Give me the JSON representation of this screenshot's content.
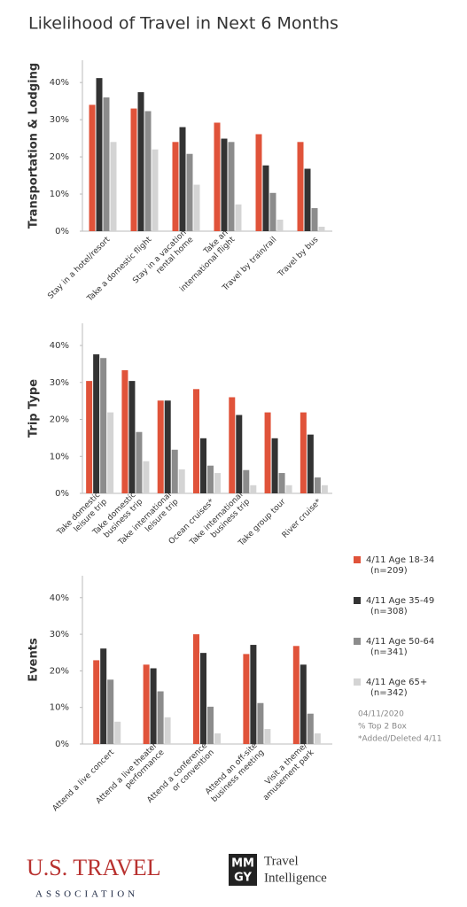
{
  "title": "Likelihood of Travel in Next 6 Months",
  "chart_data": [
    {
      "type": "bar",
      "ylabel": "Transportation & Lodging",
      "ylim": [
        0,
        46
      ],
      "yticks": [
        {
          "value": 0,
          "label": "0%"
        },
        {
          "value": 10,
          "label": "10%"
        },
        {
          "value": 20,
          "label": "20%"
        },
        {
          "value": 30,
          "label": "30%"
        },
        {
          "value": 40,
          "label": "40%"
        }
      ],
      "categories": [
        [
          "Stay in a hotel/resort"
        ],
        [
          "Take a domestic flight"
        ],
        [
          "Stay in a vacation",
          "rental home"
        ],
        [
          "Take an",
          "international flight"
        ],
        [
          "Travel by train/rail"
        ],
        [
          "Travel by bus"
        ]
      ],
      "series": [
        {
          "name": "4/11 Age 18-34",
          "color": "#e0533a",
          "values": [
            34,
            33,
            24,
            29.2,
            26.1,
            24
          ]
        },
        {
          "name": "4/11 Age 35-49",
          "color": "#333333",
          "values": [
            41.2,
            37.4,
            28,
            24.9,
            17.7,
            16.8
          ]
        },
        {
          "name": "4/11 Age 50-64",
          "color": "#8c8c8c",
          "values": [
            36,
            32.3,
            20.8,
            24,
            10.3,
            6.2
          ]
        },
        {
          "name": "4/11 Age 65+",
          "color": "#d4d4d4",
          "values": [
            24,
            22,
            12.5,
            7.2,
            3.1,
            1.2
          ]
        }
      ]
    },
    {
      "type": "bar",
      "ylabel": "Trip Type",
      "ylim": [
        0,
        46
      ],
      "yticks": [
        {
          "value": 0,
          "label": "0%"
        },
        {
          "value": 10,
          "label": "10%"
        },
        {
          "value": 20,
          "label": "20%"
        },
        {
          "value": 30,
          "label": "30%"
        },
        {
          "value": 40,
          "label": "40%"
        }
      ],
      "categories": [
        [
          "Take domestic",
          "leisure trip"
        ],
        [
          "Take domestic",
          "business trip"
        ],
        [
          "Take international",
          "leisure trip"
        ],
        [
          "Ocean cruises*"
        ],
        [
          "Take international",
          "business trip"
        ],
        [
          "Take group tour"
        ],
        [
          "River cruise*"
        ]
      ],
      "series": [
        {
          "name": "4/11 Age 18-34",
          "color": "#e0533a",
          "values": [
            30.4,
            33.3,
            25.1,
            28.2,
            26,
            21.9,
            21.9
          ]
        },
        {
          "name": "4/11 Age 35-49",
          "color": "#333333",
          "values": [
            37.6,
            30.4,
            25.1,
            14.9,
            21.2,
            14.9,
            15.9
          ]
        },
        {
          "name": "4/11 Age 50-64",
          "color": "#8c8c8c",
          "values": [
            36.6,
            16.6,
            11.8,
            7.5,
            6.3,
            5.5,
            4.3
          ]
        },
        {
          "name": "4/11 Age 65+",
          "color": "#d4d4d4",
          "values": [
            21.9,
            8.7,
            6.5,
            5.5,
            2.2,
            2.2,
            2.2
          ]
        }
      ]
    },
    {
      "type": "bar",
      "ylabel": "Events",
      "ylim": [
        0,
        46
      ],
      "yticks": [
        {
          "value": 0,
          "label": "0%"
        },
        {
          "value": 10,
          "label": "10%"
        },
        {
          "value": 20,
          "label": "20%"
        },
        {
          "value": 30,
          "label": "30%"
        },
        {
          "value": 40,
          "label": "40%"
        }
      ],
      "categories": [
        [
          "Attend a live concert"
        ],
        [
          "Attend a live theater",
          "performance"
        ],
        [
          "Attend a conference",
          "or convention"
        ],
        [
          "Attend an off-site",
          "business meeting"
        ],
        [
          "Visit a theme/",
          "amusement park"
        ]
      ],
      "series": [
        {
          "name": "4/11 Age 18-34",
          "color": "#e0533a",
          "values": [
            22.9,
            21.7,
            30,
            24.6,
            26.8
          ]
        },
        {
          "name": "4/11 Age 35-49",
          "color": "#333333",
          "values": [
            26.1,
            20.7,
            24.9,
            27.1,
            21.7
          ]
        },
        {
          "name": "4/11 Age 50-64",
          "color": "#8c8c8c",
          "values": [
            17.6,
            14.4,
            10.2,
            11.2,
            8.3
          ]
        },
        {
          "name": "4/11 Age 65+",
          "color": "#d4d4d4",
          "values": [
            6.1,
            7.3,
            2.9,
            4.1,
            2.9
          ]
        }
      ]
    }
  ],
  "legend": {
    "sample_sizes": [
      "(n=209)",
      "(n=308)",
      "(n=341)",
      "(n=342)"
    ]
  },
  "notes": [
    "04/11/2020",
    "% Top 2 Box",
    "*Added/Deleted 4/11"
  ],
  "footer": {
    "org_name": "U.S. TRAVEL",
    "org_sub": "ASSOCIATION",
    "logo_top": "MM",
    "logo_bottom": "GY",
    "brand_line1": "Travel",
    "brand_line2": "Intelligence"
  }
}
